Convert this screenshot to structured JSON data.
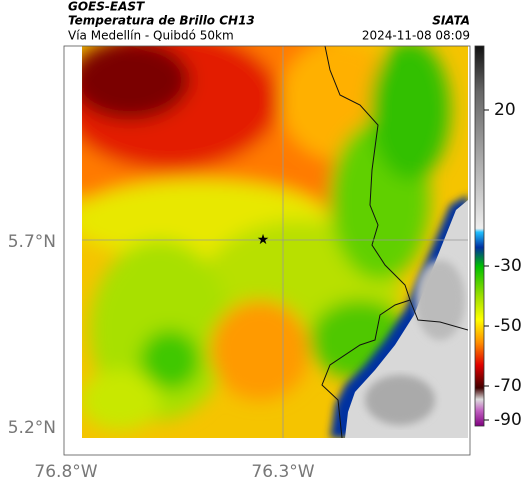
{
  "header": {
    "source": "GOES-EAST",
    "title": "Temperatura de Brillo CH13",
    "subtitle": "Vía Medellín - Quibdó 50km",
    "agency": "SIATA",
    "datetime": "2024-11-08 08:09"
  },
  "map": {
    "lat_labels": [
      "5.7°N",
      "5.2°N"
    ],
    "lon_labels": [
      "76.8°W",
      "76.3°W"
    ]
  },
  "colorbar": {
    "ticks": [
      20,
      -30,
      -50,
      -70,
      -90
    ]
  }
}
